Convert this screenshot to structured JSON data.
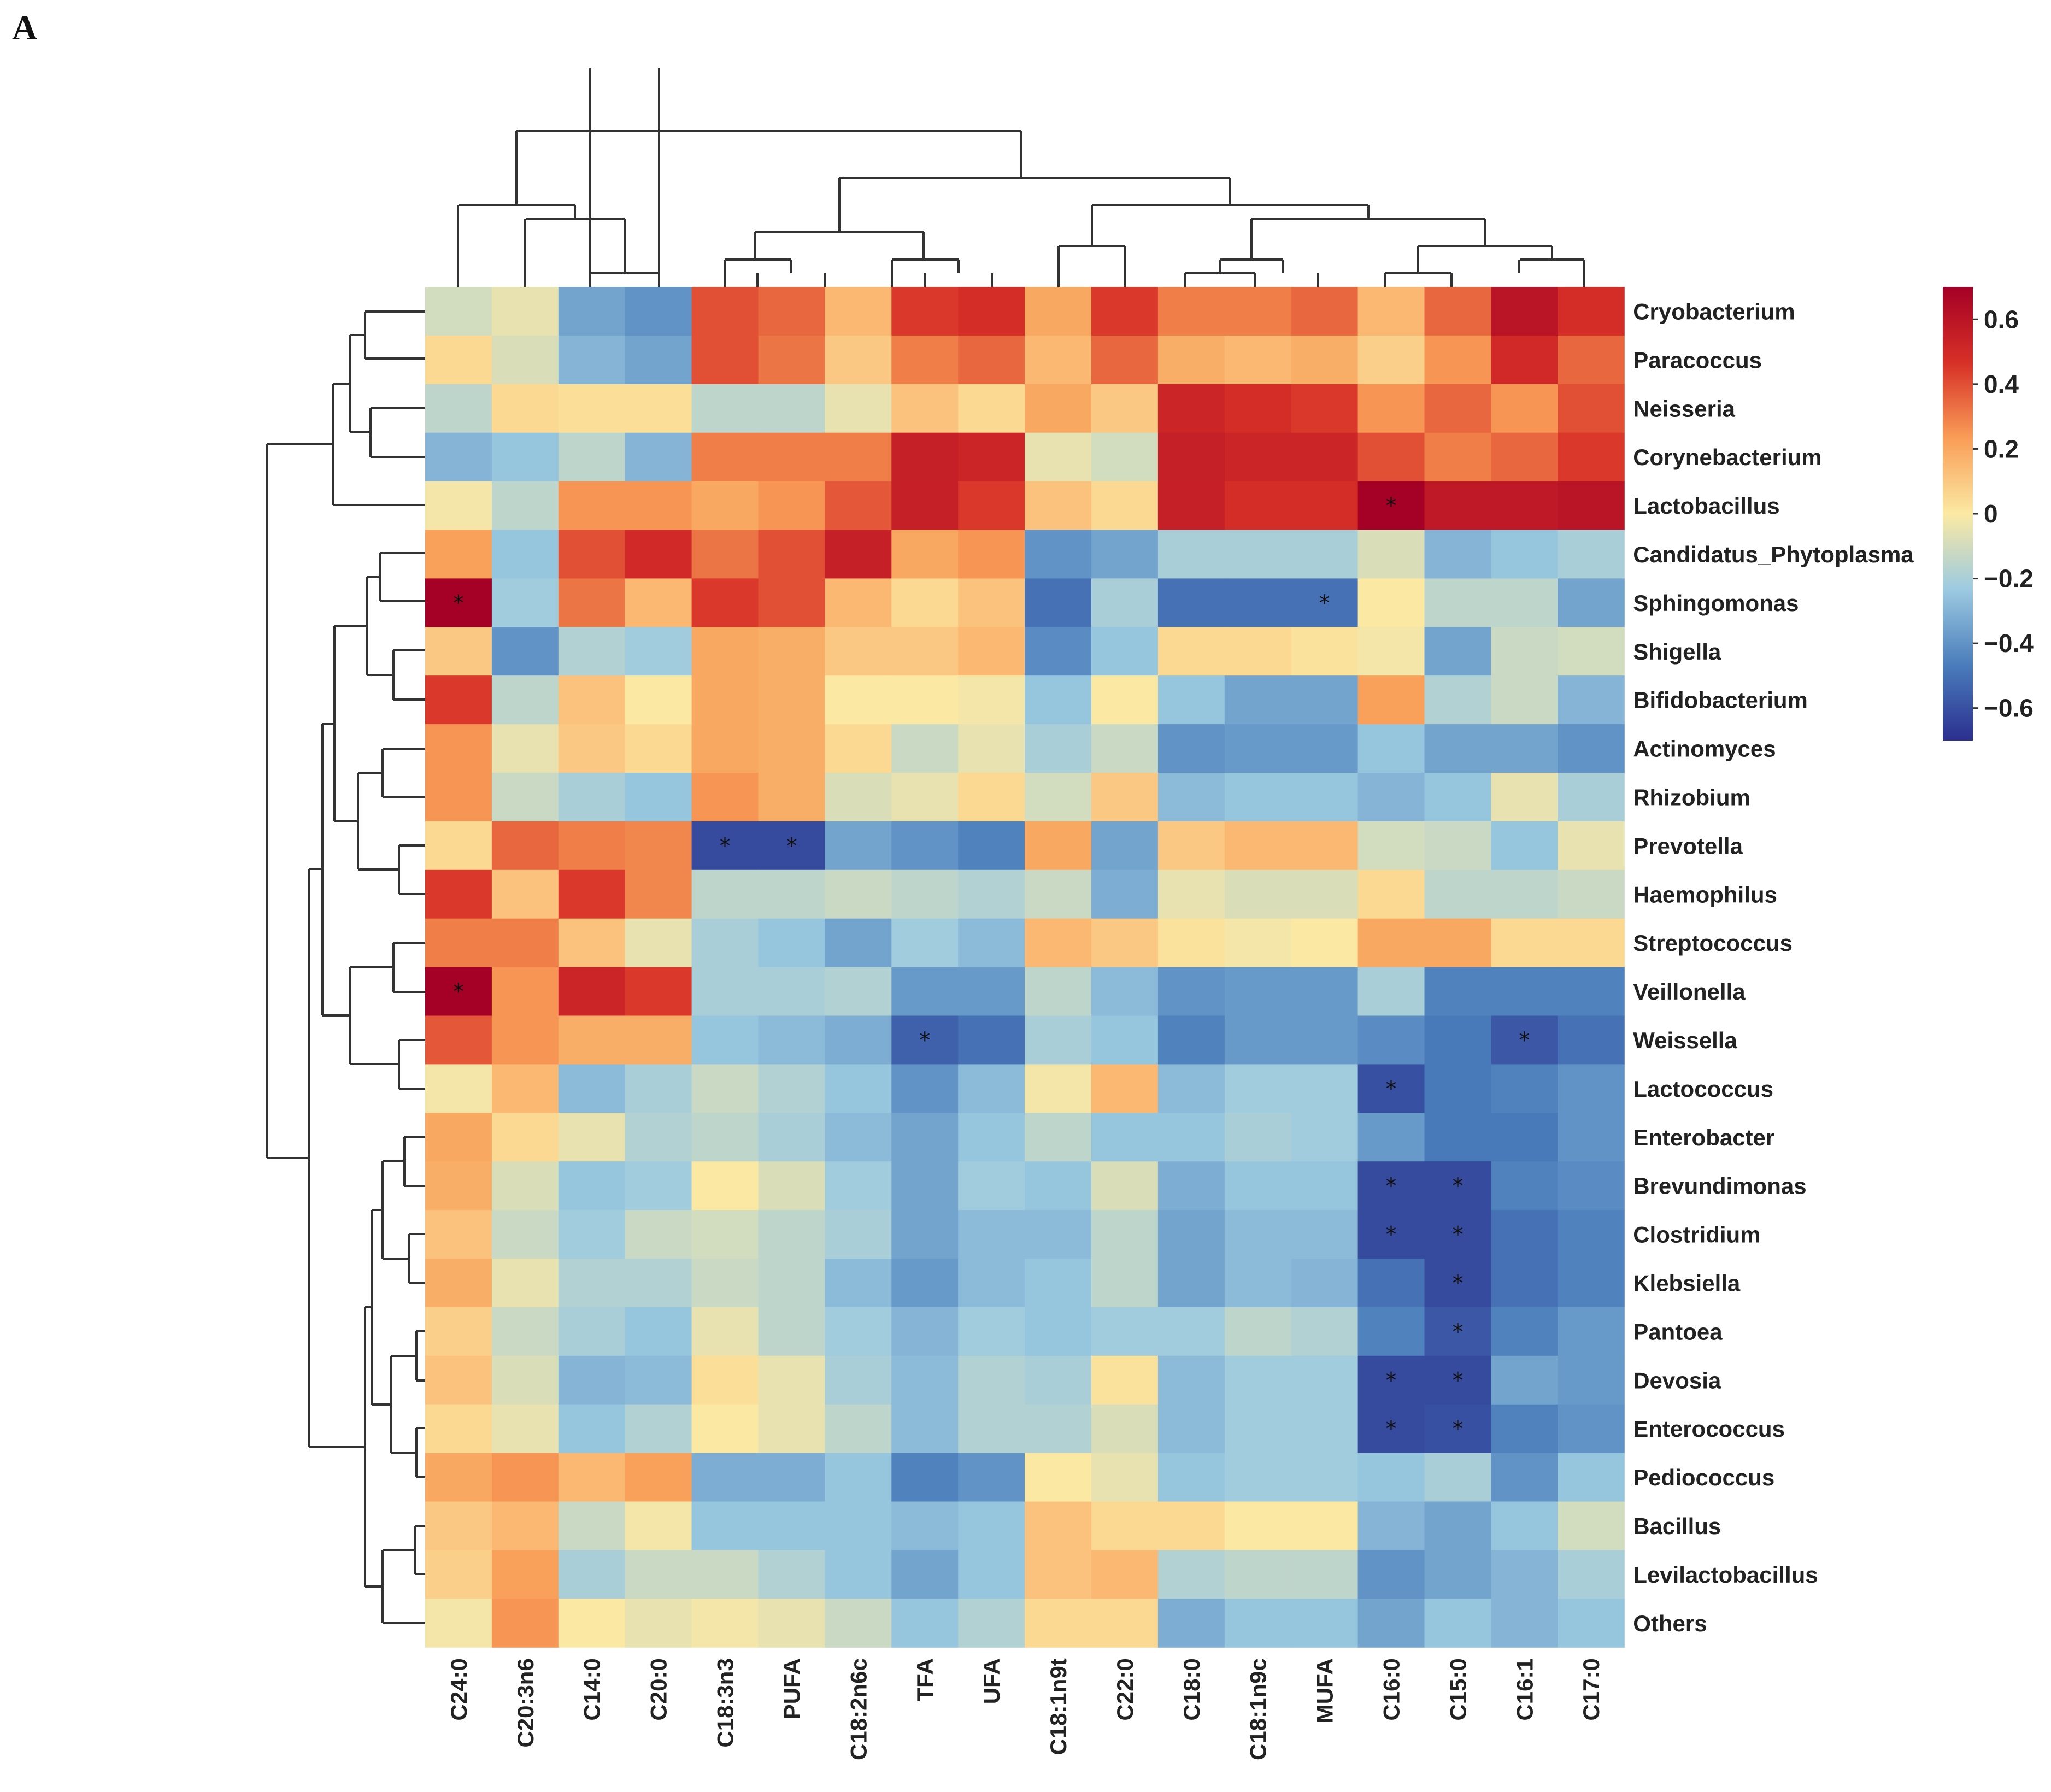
{
  "panel_label": "A",
  "chart_data": {
    "type": "heatmap",
    "title": "",
    "columns": [
      "C24:0",
      "C20:3n6",
      "C14:0",
      "C20:0",
      "C18:3n3",
      "PUFA",
      "C18:2n6c",
      "TFA",
      "UFA",
      "C18:1n9t",
      "C22:0",
      "C18:0",
      "C18:1n9c",
      "MUFA",
      "C16:0",
      "C15:0",
      "C16:1",
      "C17:0"
    ],
    "rows": [
      "Cryobacterium",
      "Paracoccus",
      "Neisseria",
      "Corynebacterium",
      "Lactobacillus",
      "Candidatus_Phytoplasma",
      "Sphingomonas",
      "Shigella",
      "Bifidobacterium",
      "Actinomyces",
      "Rhizobium",
      "Prevotella",
      "Haemophilus",
      "Streptococcus",
      "Veillonella",
      "Weissella",
      "Lactococcus",
      "Enterobacter",
      "Brevundimonas",
      "Clostridium",
      "Klebsiella",
      "Pantoea",
      "Devosia",
      "Enterococcus",
      "Pediococcus",
      "Bacillus",
      "Levilactobacillus",
      "Others"
    ],
    "values": [
      [
        -0.1,
        -0.05,
        -0.35,
        -0.4,
        0.4,
        0.35,
        0.15,
        0.45,
        0.48,
        0.2,
        0.45,
        0.3,
        0.3,
        0.35,
        0.15,
        0.35,
        0.6,
        0.48
      ],
      [
        0.05,
        -0.08,
        -0.3,
        -0.35,
        0.4,
        0.32,
        0.1,
        0.3,
        0.35,
        0.15,
        0.35,
        0.18,
        0.15,
        0.18,
        0.08,
        0.25,
        0.5,
        0.35
      ],
      [
        -0.15,
        0.05,
        0.03,
        0.03,
        -0.15,
        -0.15,
        -0.05,
        0.12,
        0.05,
        0.2,
        0.1,
        0.52,
        0.48,
        0.45,
        0.25,
        0.35,
        0.25,
        0.4
      ],
      [
        -0.3,
        -0.25,
        -0.15,
        -0.3,
        0.3,
        0.3,
        0.3,
        0.55,
        0.52,
        -0.05,
        -0.1,
        0.55,
        0.52,
        0.52,
        0.4,
        0.3,
        0.35,
        0.45
      ],
      [
        -0.02,
        -0.15,
        0.25,
        0.25,
        0.2,
        0.25,
        0.38,
        0.55,
        0.45,
        0.12,
        0.05,
        0.55,
        0.48,
        0.48,
        0.7,
        0.58,
        0.58,
        0.6
      ],
      [
        0.22,
        -0.25,
        0.4,
        0.5,
        0.32,
        0.4,
        0.55,
        0.2,
        0.25,
        -0.4,
        -0.35,
        -0.2,
        -0.2,
        -0.2,
        -0.08,
        -0.3,
        -0.25,
        -0.2
      ],
      [
        0.7,
        -0.22,
        0.32,
        0.15,
        0.45,
        0.4,
        0.15,
        0.05,
        0.12,
        -0.5,
        -0.2,
        -0.5,
        -0.5,
        -0.5,
        0.0,
        -0.15,
        -0.15,
        -0.35
      ],
      [
        0.1,
        -0.4,
        -0.18,
        -0.22,
        0.2,
        0.18,
        0.1,
        0.1,
        0.15,
        -0.42,
        -0.25,
        0.05,
        0.05,
        0.02,
        -0.02,
        -0.35,
        -0.12,
        -0.1
      ],
      [
        0.45,
        -0.15,
        0.12,
        0.0,
        0.2,
        0.18,
        0.0,
        0.0,
        -0.02,
        -0.25,
        0.0,
        -0.25,
        -0.35,
        -0.35,
        0.22,
        -0.18,
        -0.12,
        -0.3
      ],
      [
        0.25,
        -0.05,
        0.1,
        0.05,
        0.2,
        0.18,
        0.05,
        -0.12,
        -0.05,
        -0.2,
        -0.12,
        -0.4,
        -0.38,
        -0.38,
        -0.25,
        -0.35,
        -0.35,
        -0.4
      ],
      [
        0.25,
        -0.12,
        -0.2,
        -0.25,
        0.25,
        0.18,
        -0.08,
        -0.05,
        0.05,
        -0.1,
        0.1,
        -0.28,
        -0.25,
        -0.25,
        -0.3,
        -0.25,
        -0.05,
        -0.2
      ],
      [
        0.05,
        0.35,
        0.3,
        0.28,
        -0.62,
        -0.62,
        -0.35,
        -0.4,
        -0.45,
        0.2,
        -0.35,
        0.1,
        0.15,
        0.15,
        -0.1,
        -0.12,
        -0.25,
        -0.05
      ],
      [
        0.45,
        0.12,
        0.45,
        0.28,
        -0.15,
        -0.15,
        -0.12,
        -0.15,
        -0.18,
        -0.12,
        -0.32,
        -0.05,
        -0.08,
        -0.08,
        0.05,
        -0.15,
        -0.15,
        -0.12
      ],
      [
        0.3,
        0.3,
        0.12,
        -0.05,
        -0.2,
        -0.25,
        -0.35,
        -0.22,
        -0.28,
        0.15,
        0.1,
        0.02,
        -0.02,
        0.0,
        0.2,
        0.2,
        0.05,
        0.05
      ],
      [
        0.7,
        0.25,
        0.52,
        0.45,
        -0.2,
        -0.2,
        -0.18,
        -0.38,
        -0.38,
        -0.15,
        -0.28,
        -0.4,
        -0.38,
        -0.38,
        -0.2,
        -0.45,
        -0.45,
        -0.45
      ],
      [
        0.38,
        0.25,
        0.18,
        0.18,
        -0.25,
        -0.28,
        -0.32,
        -0.55,
        -0.5,
        -0.2,
        -0.25,
        -0.45,
        -0.38,
        -0.38,
        -0.42,
        -0.48,
        -0.58,
        -0.5
      ],
      [
        -0.02,
        0.15,
        -0.28,
        -0.2,
        -0.12,
        -0.18,
        -0.25,
        -0.4,
        -0.28,
        -0.02,
        0.15,
        -0.28,
        -0.22,
        -0.22,
        -0.6,
        -0.48,
        -0.45,
        -0.4
      ],
      [
        0.2,
        0.05,
        -0.05,
        -0.18,
        -0.15,
        -0.2,
        -0.28,
        -0.35,
        -0.25,
        -0.15,
        -0.25,
        -0.25,
        -0.2,
        -0.22,
        -0.38,
        -0.48,
        -0.48,
        -0.4
      ],
      [
        0.18,
        -0.08,
        -0.25,
        -0.22,
        0.0,
        -0.08,
        -0.22,
        -0.35,
        -0.22,
        -0.25,
        -0.08,
        -0.32,
        -0.25,
        -0.25,
        -0.62,
        -0.62,
        -0.45,
        -0.42
      ],
      [
        0.12,
        -0.12,
        -0.22,
        -0.12,
        -0.1,
        -0.15,
        -0.2,
        -0.35,
        -0.28,
        -0.28,
        -0.15,
        -0.35,
        -0.28,
        -0.28,
        -0.62,
        -0.62,
        -0.5,
        -0.45
      ],
      [
        0.18,
        -0.05,
        -0.18,
        -0.18,
        -0.12,
        -0.15,
        -0.28,
        -0.38,
        -0.28,
        -0.25,
        -0.15,
        -0.35,
        -0.28,
        -0.3,
        -0.5,
        -0.62,
        -0.5,
        -0.45
      ],
      [
        0.08,
        -0.12,
        -0.2,
        -0.25,
        -0.05,
        -0.15,
        -0.22,
        -0.3,
        -0.22,
        -0.25,
        -0.22,
        -0.22,
        -0.15,
        -0.18,
        -0.45,
        -0.58,
        -0.45,
        -0.38
      ],
      [
        0.12,
        -0.08,
        -0.3,
        -0.28,
        0.03,
        -0.05,
        -0.2,
        -0.28,
        -0.18,
        -0.2,
        0.02,
        -0.28,
        -0.22,
        -0.22,
        -0.62,
        -0.62,
        -0.35,
        -0.38
      ],
      [
        0.05,
        -0.05,
        -0.25,
        -0.18,
        0.0,
        -0.05,
        -0.15,
        -0.28,
        -0.18,
        -0.18,
        -0.08,
        -0.28,
        -0.22,
        -0.22,
        -0.62,
        -0.6,
        -0.45,
        -0.4
      ],
      [
        0.2,
        0.25,
        0.15,
        0.22,
        -0.32,
        -0.32,
        -0.25,
        -0.45,
        -0.4,
        0.0,
        -0.05,
        -0.25,
        -0.22,
        -0.22,
        -0.25,
        -0.2,
        -0.4,
        -0.25
      ],
      [
        0.1,
        0.15,
        -0.12,
        -0.02,
        -0.25,
        -0.25,
        -0.25,
        -0.28,
        -0.25,
        0.12,
        0.05,
        0.05,
        0.0,
        0.0,
        -0.3,
        -0.35,
        -0.25,
        -0.1
      ],
      [
        0.08,
        0.22,
        -0.2,
        -0.12,
        -0.12,
        -0.18,
        -0.25,
        -0.35,
        -0.25,
        0.12,
        0.15,
        -0.18,
        -0.15,
        -0.15,
        -0.4,
        -0.35,
        -0.3,
        -0.2
      ],
      [
        -0.02,
        0.25,
        0.0,
        -0.05,
        -0.02,
        -0.05,
        -0.12,
        -0.25,
        -0.18,
        0.05,
        0.05,
        -0.32,
        -0.25,
        -0.25,
        -0.35,
        -0.25,
        -0.3,
        -0.25
      ]
    ],
    "significant": [
      {
        "row": "Lactobacillus",
        "col": "C16:0"
      },
      {
        "row": "Sphingomonas",
        "col": "C24:0"
      },
      {
        "row": "Sphingomonas",
        "col": "MUFA"
      },
      {
        "row": "Prevotella",
        "col": "C18:3n3"
      },
      {
        "row": "Prevotella",
        "col": "PUFA"
      },
      {
        "row": "Veillonella",
        "col": "C24:0"
      },
      {
        "row": "Weissella",
        "col": "TFA"
      },
      {
        "row": "Weissella",
        "col": "C16:1"
      },
      {
        "row": "Lactococcus",
        "col": "C16:0"
      },
      {
        "row": "Brevundimonas",
        "col": "C16:0"
      },
      {
        "row": "Brevundimonas",
        "col": "C15:0"
      },
      {
        "row": "Clostridium",
        "col": "C16:0"
      },
      {
        "row": "Clostridium",
        "col": "C15:0"
      },
      {
        "row": "Klebsiella",
        "col": "C15:0"
      },
      {
        "row": "Pantoea",
        "col": "C15:0"
      },
      {
        "row": "Devosia",
        "col": "C16:0"
      },
      {
        "row": "Devosia",
        "col": "C15:0"
      },
      {
        "row": "Enterococcus",
        "col": "C16:0"
      },
      {
        "row": "Enterococcus",
        "col": "C15:0"
      }
    ],
    "significance_marker": "*",
    "legend": {
      "position": "right",
      "range": [
        -0.7,
        0.7
      ],
      "ticks": [
        0.6,
        0.4,
        0.2,
        0,
        -0.2,
        -0.4,
        -0.6
      ],
      "tick_labels": [
        "0.6",
        "0.4",
        "0.2",
        "0",
        "−0.2",
        "−0.4",
        "−0.6"
      ],
      "colors": [
        "#2b2f8f",
        "#4a7dbb",
        "#9ccae1",
        "#fbe9a3",
        "#f99d57",
        "#d73027",
        "#a50026"
      ]
    },
    "dendrogram": {
      "columns": "hierarchical clustering (top)",
      "rows": "hierarchical clustering (left)"
    }
  }
}
